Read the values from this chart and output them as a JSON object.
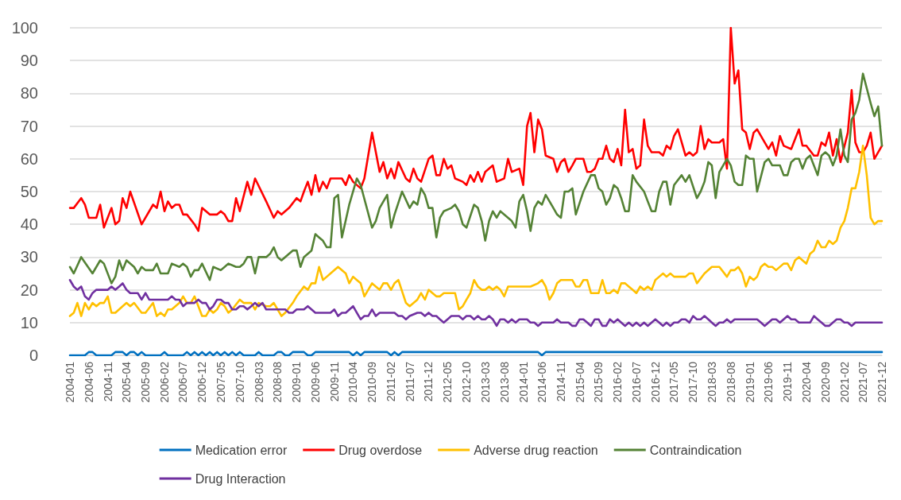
{
  "chart_data": {
    "type": "line",
    "ylim": [
      0,
      100
    ],
    "yticks": [
      0,
      10,
      20,
      30,
      40,
      50,
      60,
      70,
      80,
      90,
      100
    ],
    "grid": "y",
    "legend": "bottom",
    "marker": "none",
    "line_style": "solid",
    "xlim": [
      "2004-01",
      "2021-12"
    ],
    "xticks": [
      "2004-01",
      "2004-06",
      "2004-11",
      "2005-04",
      "2005-09",
      "2006-02",
      "2006-07",
      "2006-12",
      "2007-05",
      "2007-10",
      "2008-03",
      "2008-08",
      "2009-01",
      "2009-06",
      "2009-11",
      "2010-04",
      "2010-09",
      "2011-02",
      "2011-07",
      "2011-12",
      "2012-05",
      "2012-10",
      "2013-03",
      "2013-08",
      "2014-01",
      "2014-06",
      "2014-11",
      "2015-04",
      "2015-09",
      "2016-02",
      "2016-07",
      "2016-12",
      "2017-05",
      "2017-10",
      "2018-03",
      "2018-08",
      "2019-01",
      "2019-06",
      "2019-11",
      "2020-04",
      "2020-09",
      "2021-02",
      "2021-07",
      "2021-12"
    ],
    "series": [
      {
        "name": "Medication error",
        "color": "#0070c0",
        "x": [
          "2004-01",
          "2004-05",
          "2004-06",
          "2004-07",
          "2004-08",
          "2004-12",
          "2005-01",
          "2005-03",
          "2005-04",
          "2005-05",
          "2005-06",
          "2005-07",
          "2005-08",
          "2005-09",
          "2006-01",
          "2006-02",
          "2006-03",
          "2006-07",
          "2006-08",
          "2006-09",
          "2006-10",
          "2006-11",
          "2006-12",
          "2007-01",
          "2007-02",
          "2007-03",
          "2007-04",
          "2007-05",
          "2007-06",
          "2007-07",
          "2007-08",
          "2007-09",
          "2007-10",
          "2007-11",
          "2008-02",
          "2008-03",
          "2008-04",
          "2008-07",
          "2008-08",
          "2008-09",
          "2008-10",
          "2008-11",
          "2008-12",
          "2009-03",
          "2009-04",
          "2009-05",
          "2009-06",
          "2010-03",
          "2010-04",
          "2010-05",
          "2010-06",
          "2010-07",
          "2011-01",
          "2011-02",
          "2011-03",
          "2011-04",
          "2011-05",
          "2014-05",
          "2014-06",
          "2014-07",
          "2021-12"
        ],
        "values": [
          0,
          0,
          1,
          1,
          0,
          0,
          1,
          1,
          0,
          1,
          1,
          0,
          1,
          0,
          0,
          1,
          0,
          0,
          1,
          0,
          1,
          0,
          1,
          0,
          1,
          0,
          1,
          0,
          1,
          0,
          1,
          0,
          1,
          0,
          0,
          1,
          0,
          0,
          1,
          1,
          0,
          0,
          1,
          1,
          0,
          0,
          1,
          1,
          0,
          1,
          0,
          1,
          1,
          0,
          1,
          0,
          1,
          1,
          0,
          1,
          1
        ]
      },
      {
        "name": "Drug overdose",
        "color": "#ff0000",
        "x": [
          "2004-01",
          "2004-02",
          "2004-04",
          "2004-05",
          "2004-06",
          "2004-08",
          "2004-09",
          "2004-10",
          "2004-12",
          "2005-01",
          "2005-02",
          "2005-03",
          "2005-04",
          "2005-05",
          "2005-08",
          "2005-11",
          "2005-12",
          "2006-01",
          "2006-02",
          "2006-03",
          "2006-04",
          "2006-05",
          "2006-06",
          "2006-07",
          "2006-08",
          "2006-10",
          "2006-11",
          "2006-12",
          "2007-02",
          "2007-04",
          "2007-05",
          "2007-06",
          "2007-07",
          "2007-08",
          "2007-09",
          "2007-10",
          "2007-12",
          "2008-01",
          "2008-02",
          "2008-05",
          "2008-07",
          "2008-08",
          "2008-09",
          "2008-11",
          "2009-01",
          "2009-02",
          "2009-03",
          "2009-04",
          "2009-05",
          "2009-06",
          "2009-07",
          "2009-08",
          "2009-09",
          "2009-10",
          "2010-01",
          "2010-02",
          "2010-03",
          "2010-04",
          "2010-06",
          "2010-07",
          "2010-09",
          "2010-11",
          "2010-12",
          "2011-01",
          "2011-02",
          "2011-03",
          "2011-04",
          "2011-06",
          "2011-07",
          "2011-08",
          "2011-09",
          "2011-10",
          "2011-12",
          "2012-01",
          "2012-02",
          "2012-03",
          "2012-04",
          "2012-05",
          "2012-06",
          "2012-07",
          "2012-09",
          "2012-10",
          "2012-11",
          "2012-12",
          "2013-01",
          "2013-02",
          "2013-03",
          "2013-05",
          "2013-06",
          "2013-08",
          "2013-09",
          "2013-10",
          "2013-12",
          "2014-01",
          "2014-02",
          "2014-03",
          "2014-04",
          "2014-05",
          "2014-06",
          "2014-07",
          "2014-09",
          "2014-10",
          "2014-11",
          "2014-12",
          "2015-01",
          "2015-02",
          "2015-03",
          "2015-05",
          "2015-06",
          "2015-07",
          "2015-08",
          "2015-09",
          "2015-10",
          "2015-11",
          "2015-12",
          "2016-01",
          "2016-02",
          "2016-03",
          "2016-04",
          "2016-05",
          "2016-06",
          "2016-07",
          "2016-08",
          "2016-09",
          "2016-10",
          "2016-11",
          "2017-01",
          "2017-02",
          "2017-03",
          "2017-04",
          "2017-05",
          "2017-06",
          "2017-08",
          "2017-09",
          "2017-10",
          "2017-11",
          "2017-12",
          "2018-01",
          "2018-02",
          "2018-03",
          "2018-05",
          "2018-06",
          "2018-07",
          "2018-08",
          "2018-09",
          "2018-10",
          "2018-11",
          "2018-12",
          "2019-01",
          "2019-02",
          "2019-03",
          "2019-05",
          "2019-06",
          "2019-07",
          "2019-08",
          "2019-09",
          "2019-10",
          "2019-12",
          "2020-01",
          "2020-02",
          "2020-03",
          "2020-04",
          "2020-06",
          "2020-07",
          "2020-08",
          "2020-09",
          "2020-10",
          "2020-11",
          "2020-12",
          "2021-01",
          "2021-03",
          "2021-04",
          "2021-05",
          "2021-06",
          "2021-07",
          "2021-08",
          "2021-09",
          "2021-10",
          "2021-12"
        ],
        "values": [
          45,
          45,
          48,
          46,
          42,
          42,
          46,
          39,
          45,
          40,
          41,
          48,
          45,
          50,
          40,
          46,
          45,
          50,
          44,
          47,
          45,
          46,
          46,
          43,
          43,
          40,
          38,
          45,
          43,
          43,
          44,
          43,
          41,
          41,
          48,
          44,
          53,
          49,
          54,
          47,
          42,
          44,
          43,
          45,
          48,
          47,
          50,
          53,
          49,
          55,
          50,
          53,
          51,
          54,
          54,
          52,
          55,
          53,
          51,
          54,
          68,
          56,
          59,
          54,
          57,
          54,
          59,
          54,
          53,
          57,
          54,
          53,
          60,
          61,
          55,
          55,
          60,
          57,
          58,
          54,
          53,
          52,
          55,
          53,
          56,
          53,
          56,
          58,
          53,
          54,
          60,
          56,
          57,
          52,
          70,
          74,
          62,
          72,
          69,
          61,
          60,
          56,
          59,
          60,
          56,
          58,
          60,
          60,
          56,
          56,
          57,
          60,
          60,
          64,
          60,
          59,
          63,
          58,
          75,
          62,
          63,
          57,
          58,
          72,
          64,
          62,
          62,
          61,
          64,
          63,
          67,
          69,
          61,
          62,
          61,
          62,
          70,
          63,
          66,
          65,
          65,
          66,
          57,
          100,
          83,
          87,
          69,
          68,
          63,
          68,
          69,
          65,
          63,
          65,
          61,
          67,
          64,
          63,
          66,
          69,
          64,
          64,
          61,
          61,
          65,
          64,
          68,
          61,
          66,
          59,
          68,
          81,
          65,
          62,
          62,
          64,
          68,
          60,
          64
        ]
      },
      {
        "name": "Adverse drug reaction",
        "color": "#ffc000",
        "x": [
          "2004-01",
          "2004-02",
          "2004-03",
          "2004-04",
          "2004-05",
          "2004-06",
          "2004-07",
          "2004-08",
          "2004-09",
          "2004-10",
          "2004-11",
          "2004-12",
          "2005-01",
          "2005-03",
          "2005-04",
          "2005-05",
          "2005-06",
          "2005-08",
          "2005-09",
          "2005-11",
          "2005-12",
          "2006-01",
          "2006-02",
          "2006-03",
          "2006-04",
          "2006-06",
          "2006-07",
          "2006-08",
          "2006-09",
          "2006-10",
          "2006-11",
          "2006-12",
          "2007-01",
          "2007-02",
          "2007-03",
          "2007-04",
          "2007-05",
          "2007-06",
          "2007-07",
          "2007-08",
          "2007-10",
          "2007-11",
          "2008-01",
          "2008-02",
          "2008-03",
          "2008-05",
          "2008-06",
          "2008-07",
          "2008-08",
          "2008-09",
          "2008-10",
          "2008-12",
          "2009-01",
          "2009-03",
          "2009-04",
          "2009-05",
          "2009-06",
          "2009-07",
          "2009-08",
          "2009-09",
          "2009-10",
          "2009-12",
          "2010-02",
          "2010-03",
          "2010-04",
          "2010-05",
          "2010-06",
          "2010-07",
          "2010-08",
          "2010-09",
          "2010-10",
          "2010-11",
          "2010-12",
          "2011-01",
          "2011-02",
          "2011-03",
          "2011-04",
          "2011-06",
          "2011-07",
          "2011-09",
          "2011-10",
          "2011-11",
          "2011-12",
          "2012-01",
          "2012-02",
          "2012-03",
          "2012-04",
          "2012-05",
          "2012-06",
          "2012-07",
          "2012-08",
          "2012-09",
          "2012-10",
          "2012-11",
          "2012-12",
          "2013-01",
          "2013-02",
          "2013-03",
          "2013-04",
          "2013-05",
          "2013-06",
          "2013-07",
          "2013-08",
          "2013-09",
          "2013-10",
          "2013-12",
          "2014-03",
          "2014-05",
          "2014-06",
          "2014-07",
          "2014-08",
          "2014-09",
          "2014-10",
          "2014-11",
          "2015-02",
          "2015-03",
          "2015-04",
          "2015-05",
          "2015-06",
          "2015-07",
          "2015-08",
          "2015-09",
          "2015-10",
          "2015-11",
          "2015-12",
          "2016-01",
          "2016-02",
          "2016-03",
          "2016-04",
          "2016-05",
          "2016-06",
          "2016-07",
          "2016-08",
          "2016-09",
          "2016-10",
          "2016-11",
          "2016-12",
          "2017-01",
          "2017-02",
          "2017-03",
          "2017-04",
          "2017-05",
          "2017-07",
          "2017-08",
          "2017-09",
          "2017-10",
          "2017-11",
          "2018-01",
          "2018-03",
          "2018-05",
          "2018-07",
          "2018-08",
          "2018-09",
          "2018-10",
          "2018-11",
          "2018-12",
          "2019-01",
          "2019-02",
          "2019-03",
          "2019-04",
          "2019-05",
          "2019-06",
          "2019-07",
          "2019-08",
          "2019-10",
          "2019-11",
          "2019-12",
          "2020-01",
          "2020-02",
          "2020-03",
          "2020-04",
          "2020-05",
          "2020-06",
          "2020-07",
          "2020-08",
          "2020-09",
          "2020-10",
          "2020-11",
          "2020-12",
          "2021-01",
          "2021-02",
          "2021-03",
          "2021-04",
          "2021-05",
          "2021-06",
          "2021-07",
          "2021-08",
          "2021-09",
          "2021-10",
          "2021-11",
          "2021-12"
        ],
        "values": [
          12,
          13,
          16,
          12,
          16,
          14,
          16,
          15,
          16,
          16,
          18,
          13,
          13,
          15,
          16,
          15,
          16,
          13,
          13,
          16,
          12,
          13,
          12,
          14,
          14,
          16,
          18,
          16,
          16,
          18,
          15,
          12,
          12,
          14,
          13,
          14,
          16,
          15,
          13,
          14,
          17,
          16,
          16,
          14,
          16,
          15,
          15,
          16,
          14,
          12,
          13,
          16,
          18,
          21,
          20,
          22,
          22,
          27,
          23,
          24,
          25,
          27,
          25,
          22,
          24,
          23,
          22,
          18,
          20,
          22,
          21,
          20,
          22,
          22,
          20,
          22,
          23,
          16,
          15,
          17,
          19,
          17,
          20,
          19,
          18,
          18,
          19,
          19,
          19,
          19,
          14,
          15,
          17,
          19,
          23,
          21,
          20,
          20,
          21,
          20,
          21,
          20,
          18,
          21,
          21,
          21,
          21,
          22,
          23,
          21,
          17,
          19,
          22,
          23,
          23,
          21,
          21,
          23,
          23,
          19,
          19,
          19,
          23,
          19,
          19,
          20,
          19,
          22,
          22,
          21,
          20,
          19,
          21,
          20,
          21,
          20,
          23,
          24,
          25,
          24,
          25,
          24,
          24,
          24,
          25,
          25,
          22,
          25,
          27,
          27,
          24,
          26,
          26,
          27,
          25,
          21,
          24,
          23,
          24,
          27,
          28,
          27,
          27,
          26,
          28,
          28,
          26,
          29,
          30,
          29,
          28,
          31,
          32,
          35,
          33,
          33,
          35,
          34,
          35,
          39,
          41,
          45,
          51,
          51,
          56,
          64,
          55,
          42,
          40,
          41,
          41
        ]
      },
      {
        "name": "Contraindication",
        "color": "#548235",
        "x": [
          "2004-01",
          "2004-02",
          "2004-04",
          "2004-07",
          "2004-09",
          "2004-10",
          "2004-12",
          "2005-01",
          "2005-02",
          "2005-03",
          "2005-04",
          "2005-06",
          "2005-07",
          "2005-08",
          "2005-09",
          "2005-11",
          "2005-12",
          "2006-01",
          "2006-03",
          "2006-04",
          "2006-06",
          "2006-07",
          "2006-08",
          "2006-09",
          "2006-10",
          "2006-11",
          "2006-12",
          "2007-02",
          "2007-03",
          "2007-05",
          "2007-06",
          "2007-07",
          "2007-09",
          "2007-10",
          "2007-11",
          "2007-12",
          "2008-01",
          "2008-02",
          "2008-03",
          "2008-05",
          "2008-06",
          "2008-07",
          "2008-08",
          "2008-09",
          "2008-11",
          "2008-12",
          "2009-01",
          "2009-02",
          "2009-03",
          "2009-05",
          "2009-06",
          "2009-07",
          "2009-08",
          "2009-09",
          "2009-10",
          "2009-11",
          "2009-12",
          "2010-01",
          "2010-03",
          "2010-05",
          "2010-06",
          "2010-09",
          "2010-10",
          "2010-11",
          "2011-01",
          "2011-02",
          "2011-03",
          "2011-05",
          "2011-07",
          "2011-08",
          "2011-09",
          "2011-10",
          "2011-11",
          "2011-12",
          "2012-01",
          "2012-02",
          "2012-03",
          "2012-04",
          "2012-06",
          "2012-07",
          "2012-08",
          "2012-09",
          "2012-10",
          "2012-12",
          "2013-01",
          "2013-02",
          "2013-03",
          "2013-04",
          "2013-05",
          "2013-06",
          "2013-07",
          "2013-09",
          "2013-10",
          "2013-11",
          "2013-12",
          "2014-01",
          "2014-02",
          "2014-03",
          "2014-04",
          "2014-05",
          "2014-06",
          "2014-07",
          "2014-09",
          "2014-10",
          "2014-11",
          "2014-12",
          "2015-01",
          "2015-02",
          "2015-03",
          "2015-05",
          "2015-07",
          "2015-08",
          "2015-09",
          "2015-10",
          "2015-11",
          "2015-12",
          "2016-01",
          "2016-02",
          "2016-03",
          "2016-04",
          "2016-05",
          "2016-06",
          "2016-07",
          "2016-09",
          "2016-10",
          "2016-11",
          "2016-12",
          "2017-01",
          "2017-02",
          "2017-03",
          "2017-04",
          "2017-05",
          "2017-07",
          "2017-08",
          "2017-09",
          "2017-11",
          "2017-12",
          "2018-01",
          "2018-02",
          "2018-03",
          "2018-04",
          "2018-05",
          "2018-07",
          "2018-08",
          "2018-09",
          "2018-10",
          "2018-11",
          "2018-12",
          "2019-01",
          "2019-02",
          "2019-03",
          "2019-05",
          "2019-06",
          "2019-07",
          "2019-09",
          "2019-10",
          "2019-11",
          "2019-12",
          "2020-01",
          "2020-02",
          "2020-03",
          "2020-04",
          "2020-05",
          "2020-07",
          "2020-08",
          "2020-09",
          "2020-10",
          "2020-11",
          "2020-12",
          "2021-01",
          "2021-02",
          "2021-03",
          "2021-04",
          "2021-05",
          "2021-06",
          "2021-07",
          "2021-09",
          "2021-10",
          "2021-11",
          "2021-12"
        ],
        "values": [
          27,
          25,
          30,
          25,
          29,
          28,
          22,
          24,
          29,
          26,
          29,
          27,
          25,
          27,
          26,
          26,
          28,
          25,
          25,
          28,
          27,
          28,
          27,
          24,
          26,
          26,
          28,
          23,
          27,
          26,
          27,
          28,
          27,
          27,
          28,
          30,
          30,
          25,
          30,
          30,
          31,
          33,
          30,
          29,
          31,
          32,
          32,
          27,
          30,
          32,
          37,
          36,
          35,
          33,
          33,
          48,
          49,
          36,
          46,
          54,
          52,
          39,
          41,
          45,
          49,
          39,
          43,
          50,
          45,
          47,
          46,
          51,
          49,
          45,
          45,
          36,
          42,
          44,
          45,
          46,
          44,
          40,
          39,
          46,
          45,
          41,
          35,
          41,
          44,
          42,
          44,
          42,
          41,
          39,
          47,
          49,
          44,
          38,
          45,
          47,
          46,
          49,
          45,
          43,
          42,
          50,
          50,
          51,
          43,
          50,
          55,
          55,
          51,
          50,
          46,
          48,
          52,
          51,
          48,
          44,
          44,
          55,
          53,
          50,
          47,
          44,
          44,
          50,
          53,
          53,
          46,
          52,
          55,
          53,
          55,
          48,
          50,
          53,
          59,
          58,
          48,
          56,
          60,
          58,
          53,
          52,
          52,
          61,
          60,
          60,
          50,
          59,
          60,
          58,
          58,
          55,
          55,
          59,
          60,
          60,
          57,
          60,
          61,
          55,
          61,
          62,
          61,
          58,
          61,
          69,
          61,
          59,
          72,
          74,
          78,
          86,
          77,
          73,
          76,
          64
        ]
      },
      {
        "name": "Drug Interaction",
        "color": "#7030a0",
        "x": [
          "2004-01",
          "2004-02",
          "2004-03",
          "2004-04",
          "2004-05",
          "2004-06",
          "2004-07",
          "2004-08",
          "2004-11",
          "2004-12",
          "2005-01",
          "2005-02",
          "2005-03",
          "2005-04",
          "2005-05",
          "2005-07",
          "2005-08",
          "2005-09",
          "2005-10",
          "2006-03",
          "2006-04",
          "2006-05",
          "2006-06",
          "2006-07",
          "2006-08",
          "2006-09",
          "2006-10",
          "2006-11",
          "2006-12",
          "2007-01",
          "2007-02",
          "2007-03",
          "2007-04",
          "2007-05",
          "2007-06",
          "2007-07",
          "2007-08",
          "2007-09",
          "2007-10",
          "2007-11",
          "2007-12",
          "2008-01",
          "2008-02",
          "2008-03",
          "2008-04",
          "2008-05",
          "2008-10",
          "2008-11",
          "2008-12",
          "2009-01",
          "2009-03",
          "2009-04",
          "2009-05",
          "2009-06",
          "2009-07",
          "2009-10",
          "2009-11",
          "2009-12",
          "2010-01",
          "2010-02",
          "2010-04",
          "2010-05",
          "2010-06",
          "2010-07",
          "2010-08",
          "2010-09",
          "2010-10",
          "2010-11",
          "2011-01",
          "2011-03",
          "2011-04",
          "2011-05",
          "2011-06",
          "2011-07",
          "2011-09",
          "2011-10",
          "2011-11",
          "2011-12",
          "2012-01",
          "2012-02",
          "2012-03",
          "2012-04",
          "2012-05",
          "2012-06",
          "2012-08",
          "2012-09",
          "2012-10",
          "2012-11",
          "2012-12",
          "2013-01",
          "2013-02",
          "2013-03",
          "2013-04",
          "2013-05",
          "2013-06",
          "2013-07",
          "2013-08",
          "2013-09",
          "2013-10",
          "2013-11",
          "2013-12",
          "2014-02",
          "2014-03",
          "2014-04",
          "2014-05",
          "2014-06",
          "2014-09",
          "2014-10",
          "2014-11",
          "2015-01",
          "2015-02",
          "2015-03",
          "2015-04",
          "2015-05",
          "2015-06",
          "2015-07",
          "2015-08",
          "2015-09",
          "2015-10",
          "2015-11",
          "2015-12",
          "2016-01",
          "2016-02",
          "2016-03",
          "2016-04",
          "2016-05",
          "2016-06",
          "2016-07",
          "2016-08",
          "2016-09",
          "2016-10",
          "2016-11",
          "2016-12",
          "2017-01",
          "2017-02",
          "2017-03",
          "2017-04",
          "2017-05",
          "2017-06",
          "2017-07",
          "2017-08",
          "2017-09",
          "2017-10",
          "2017-11",
          "2017-12",
          "2018-01",
          "2018-02",
          "2018-03",
          "2018-04",
          "2018-05",
          "2018-06",
          "2018-07",
          "2018-08",
          "2018-09",
          "2018-10",
          "2018-11",
          "2019-03",
          "2019-04",
          "2019-05",
          "2019-06",
          "2019-07",
          "2019-08",
          "2019-09",
          "2019-10",
          "2019-11",
          "2019-12",
          "2020-01",
          "2020-02",
          "2020-05",
          "2020-06",
          "2020-07",
          "2020-08",
          "2020-09",
          "2020-10",
          "2020-11",
          "2020-12",
          "2021-01",
          "2021-02",
          "2021-03",
          "2021-04",
          "2021-05",
          "2021-07",
          "2021-12"
        ],
        "values": [
          23,
          21,
          20,
          21,
          18,
          17,
          19,
          20,
          20,
          21,
          20,
          21,
          22,
          20,
          19,
          19,
          17,
          19,
          17,
          17,
          18,
          17,
          17,
          15,
          16,
          16,
          16,
          17,
          16,
          16,
          14,
          15,
          17,
          17,
          16,
          16,
          14,
          14,
          15,
          15,
          14,
          15,
          16,
          15,
          16,
          14,
          14,
          13,
          13,
          14,
          14,
          15,
          14,
          13,
          13,
          13,
          14,
          12,
          13,
          13,
          15,
          13,
          11,
          12,
          12,
          14,
          12,
          13,
          13,
          13,
          12,
          12,
          11,
          12,
          13,
          13,
          12,
          13,
          12,
          12,
          11,
          10,
          11,
          12,
          12,
          11,
          12,
          12,
          11,
          12,
          11,
          11,
          12,
          11,
          9,
          11,
          11,
          10,
          11,
          10,
          11,
          11,
          10,
          10,
          9,
          10,
          10,
          11,
          10,
          10,
          9,
          9,
          11,
          11,
          10,
          9,
          11,
          11,
          9,
          9,
          11,
          10,
          11,
          10,
          9,
          10,
          9,
          10,
          9,
          10,
          9,
          10,
          11,
          10,
          9,
          10,
          9,
          10,
          10,
          11,
          11,
          10,
          12,
          11,
          11,
          12,
          11,
          10,
          9,
          10,
          10,
          11,
          10,
          11,
          11,
          11,
          11,
          10,
          9,
          10,
          11,
          11,
          10,
          11,
          12,
          11,
          11,
          10,
          10,
          12,
          11,
          10,
          9,
          9,
          10,
          11,
          11,
          10,
          10,
          9,
          10,
          10,
          10
        ]
      }
    ]
  }
}
